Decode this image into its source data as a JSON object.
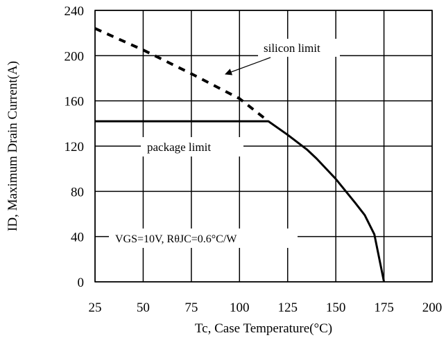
{
  "chart_data": {
    "type": "line",
    "xlabel": "Tc, Case Temperature(°C)",
    "ylabel": "ID, Maximum Drain Current(A)",
    "xlim": [
      25,
      200
    ],
    "ylim": [
      0,
      240
    ],
    "x_ticks": [
      "25",
      "50",
      "75",
      "100",
      "125",
      "150",
      "175",
      "200"
    ],
    "y_ticks": [
      "0",
      "40",
      "80",
      "120",
      "160",
      "200",
      "240"
    ],
    "grid": true,
    "series": [
      {
        "name": "silicon limit",
        "style": "dashed",
        "x": [
          25,
          50,
          75,
          100,
          115
        ],
        "y": [
          224,
          205,
          184,
          162,
          142
        ]
      },
      {
        "name": "package limit",
        "style": "solid",
        "x": [
          25,
          115,
          125,
          135,
          140,
          150,
          160,
          165,
          170,
          175
        ],
        "y": [
          142,
          142,
          130,
          117,
          109,
          91,
          70,
          59,
          42,
          0
        ]
      }
    ],
    "annotations": {
      "silicon_limit": "silicon limit",
      "package_limit": "package limit",
      "conditions": "VGS=10V, RθJC=0.6°C/W"
    }
  }
}
